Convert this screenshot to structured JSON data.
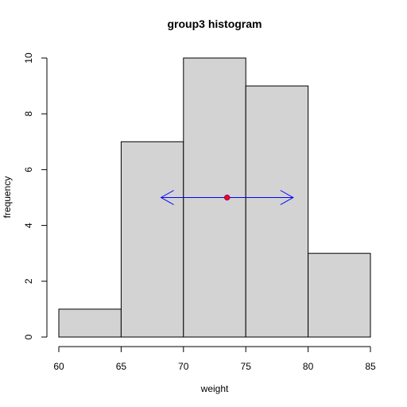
{
  "chart_data": {
    "type": "bar",
    "title": "group3 histogram",
    "xlabel": "weight",
    "ylabel": "frequency",
    "bins": [
      {
        "from": 60,
        "to": 65,
        "count": 1
      },
      {
        "from": 65,
        "to": 70,
        "count": 7
      },
      {
        "from": 70,
        "to": 75,
        "count": 10
      },
      {
        "from": 75,
        "to": 80,
        "count": 9
      },
      {
        "from": 80,
        "to": 85,
        "count": 3
      }
    ],
    "xlim": [
      60,
      85
    ],
    "ylim": [
      0,
      10
    ],
    "x_ticks": [
      "60",
      "65",
      "70",
      "75",
      "80",
      "85"
    ],
    "y_ticks": [
      "0",
      "2",
      "4",
      "6",
      "8",
      "10"
    ],
    "bar_color": "#d3d3d3",
    "bar_border_color": "#000000",
    "mean_marker": {
      "x": 73.5,
      "y": 5,
      "color": "#ff0000"
    },
    "interval_arrow": {
      "from": 68.2,
      "to": 78.8,
      "y": 5,
      "color": "#0000ff"
    }
  }
}
